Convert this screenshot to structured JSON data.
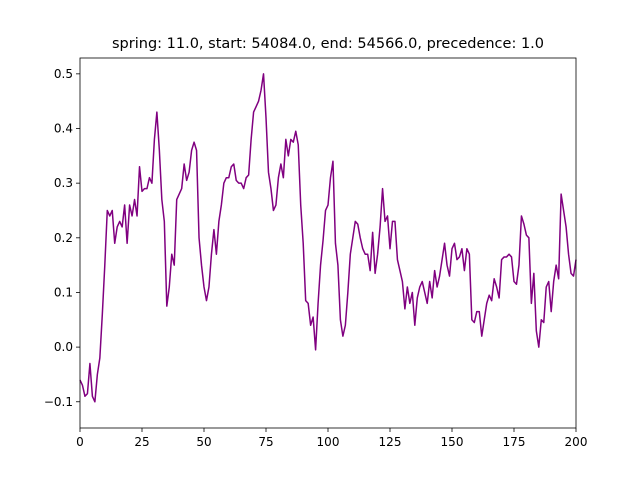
{
  "chart_data": {
    "type": "line",
    "title": "spring: 11.0, start: 54084.0, end: 54566.0, precedence: 1.0",
    "x": [
      0,
      1,
      2,
      3,
      4,
      5,
      6,
      7,
      8,
      9,
      10,
      11,
      12,
      13,
      14,
      15,
      16,
      17,
      18,
      19,
      20,
      21,
      22,
      23,
      24,
      25,
      26,
      27,
      28,
      29,
      30,
      31,
      32,
      33,
      34,
      35,
      36,
      37,
      38,
      39,
      40,
      41,
      42,
      43,
      44,
      45,
      46,
      47,
      48,
      49,
      50,
      51,
      52,
      53,
      54,
      55,
      56,
      57,
      58,
      59,
      60,
      61,
      62,
      63,
      64,
      65,
      66,
      67,
      68,
      69,
      70,
      71,
      72,
      73,
      74,
      75,
      76,
      77,
      78,
      79,
      80,
      81,
      82,
      83,
      84,
      85,
      86,
      87,
      88,
      89,
      90,
      91,
      92,
      93,
      94,
      95,
      96,
      97,
      98,
      99,
      100,
      101,
      102,
      103,
      104,
      105,
      106,
      107,
      108,
      109,
      110,
      111,
      112,
      113,
      114,
      115,
      116,
      117,
      118,
      119,
      120,
      121,
      122,
      123,
      124,
      125,
      126,
      127,
      128,
      129,
      130,
      131,
      132,
      133,
      134,
      135,
      136,
      137,
      138,
      139,
      140,
      141,
      142,
      143,
      144,
      145,
      146,
      147,
      148,
      149,
      150,
      151,
      152,
      153,
      154,
      155,
      156,
      157,
      158,
      159,
      160,
      161,
      162,
      163,
      164,
      165,
      166,
      167,
      168,
      169,
      170,
      171,
      172,
      173,
      174,
      175,
      176,
      177,
      178,
      179,
      180,
      181,
      182,
      183,
      184,
      185,
      186,
      187,
      188,
      189,
      190,
      191,
      192,
      193,
      194,
      195,
      196,
      197,
      198,
      199,
      200
    ],
    "series": [
      {
        "color": "#800080",
        "values": [
          -0.06,
          -0.07,
          -0.09,
          -0.085,
          -0.03,
          -0.09,
          -0.1,
          -0.05,
          -0.02,
          0.06,
          0.15,
          0.25,
          0.24,
          0.25,
          0.19,
          0.22,
          0.23,
          0.22,
          0.26,
          0.19,
          0.26,
          0.24,
          0.27,
          0.24,
          0.33,
          0.285,
          0.29,
          0.29,
          0.31,
          0.3,
          0.38,
          0.43,
          0.36,
          0.27,
          0.23,
          0.075,
          0.11,
          0.17,
          0.15,
          0.27,
          0.28,
          0.29,
          0.335,
          0.305,
          0.32,
          0.36,
          0.375,
          0.36,
          0.2,
          0.15,
          0.11,
          0.085,
          0.11,
          0.17,
          0.215,
          0.17,
          0.23,
          0.26,
          0.3,
          0.31,
          0.31,
          0.33,
          0.335,
          0.305,
          0.3,
          0.3,
          0.29,
          0.31,
          0.315,
          0.38,
          0.43,
          0.44,
          0.45,
          0.47,
          0.5,
          0.42,
          0.32,
          0.29,
          0.25,
          0.26,
          0.31,
          0.335,
          0.31,
          0.38,
          0.35,
          0.38,
          0.375,
          0.395,
          0.37,
          0.26,
          0.19,
          0.085,
          0.08,
          0.04,
          0.055,
          -0.005,
          0.08,
          0.15,
          0.195,
          0.25,
          0.26,
          0.31,
          0.34,
          0.19,
          0.15,
          0.05,
          0.02,
          0.04,
          0.1,
          0.17,
          0.2,
          0.23,
          0.225,
          0.2,
          0.18,
          0.17,
          0.17,
          0.14,
          0.21,
          0.135,
          0.17,
          0.22,
          0.29,
          0.23,
          0.24,
          0.18,
          0.23,
          0.23,
          0.16,
          0.14,
          0.12,
          0.07,
          0.11,
          0.08,
          0.1,
          0.04,
          0.09,
          0.11,
          0.12,
          0.1,
          0.08,
          0.12,
          0.09,
          0.14,
          0.11,
          0.13,
          0.16,
          0.19,
          0.15,
          0.13,
          0.18,
          0.19,
          0.16,
          0.165,
          0.18,
          0.14,
          0.18,
          0.17,
          0.05,
          0.045,
          0.065,
          0.065,
          0.02,
          0.05,
          0.08,
          0.095,
          0.085,
          0.125,
          0.11,
          0.09,
          0.16,
          0.165,
          0.165,
          0.17,
          0.165,
          0.12,
          0.115,
          0.15,
          0.24,
          0.225,
          0.205,
          0.2,
          0.08,
          0.135,
          0.03,
          0.0,
          0.05,
          0.045,
          0.11,
          0.12,
          0.065,
          0.12,
          0.15,
          0.125,
          0.28,
          0.25,
          0.22,
          0.17,
          0.135,
          0.13,
          0.16
        ]
      }
    ],
    "xlim": [
      0,
      200
    ],
    "xticks": [
      0,
      25,
      50,
      75,
      100,
      125,
      150,
      175,
      200
    ],
    "ylim": [
      -0.148,
      0.529
    ],
    "yticks": [
      {
        "value": -0.1,
        "label": "−0.1"
      },
      {
        "value": 0,
        "label": "0.0"
      },
      0.1,
      0.2,
      0.3,
      0.4,
      0.5
    ]
  }
}
